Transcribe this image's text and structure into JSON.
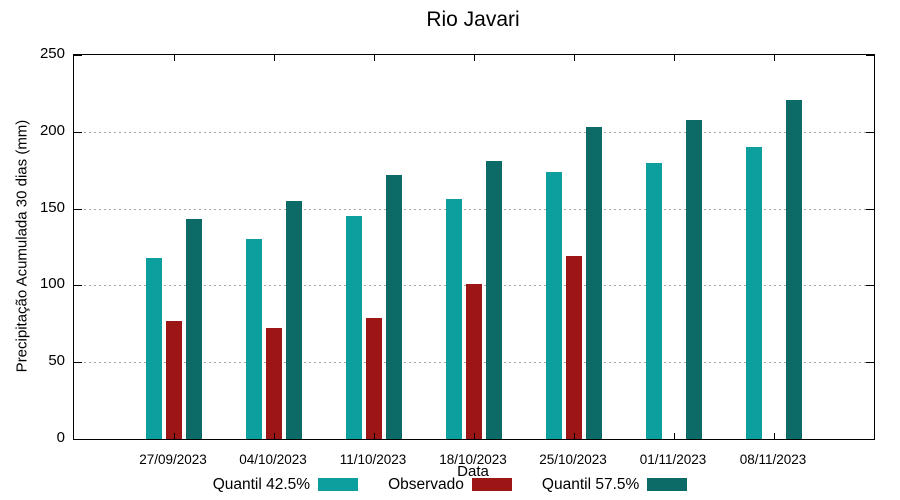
{
  "chart_data": {
    "type": "bar",
    "title": "Rio Javari",
    "xlabel": "Data",
    "ylabel": "Precipitação Acumulada 30 dias (mm)",
    "ylim": [
      0,
      250
    ],
    "y_ticks": [
      0,
      50,
      100,
      150,
      200,
      250
    ],
    "grid": "horizontal dotted gridlines at 50, 100, 150, 200",
    "legend_position": "bottom-center",
    "categories": [
      "27/09/2023",
      "04/10/2023",
      "11/10/2023",
      "18/10/2023",
      "25/10/2023",
      "01/11/2023",
      "08/11/2023"
    ],
    "series": [
      {
        "name": "Quantil 42.5%",
        "color": "#0d9e9e",
        "values": [
          118,
          130,
          145,
          156,
          174,
          180,
          190
        ]
      },
      {
        "name": "Observado",
        "color": "#9c1616",
        "values": [
          77,
          72,
          79,
          101,
          119,
          null,
          null
        ]
      },
      {
        "name": "Quantil 57.5%",
        "color": "#0c6b66",
        "values": [
          143,
          155,
          172,
          181,
          203,
          208,
          221
        ]
      }
    ],
    "colors": {
      "grid": "#a6a6a6",
      "axis": "#000000",
      "background": "#ffffff"
    }
  }
}
